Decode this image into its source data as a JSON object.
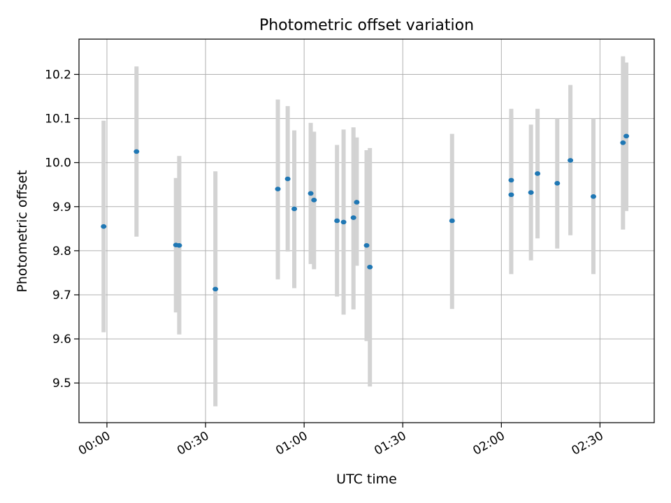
{
  "chart_data": {
    "type": "scatter",
    "title": "Photometric offset variation",
    "xlabel": "UTC time",
    "ylabel": "Photometric offset",
    "grid": true,
    "xlim": [
      "23:51:30",
      "02:46:30"
    ],
    "ylim": [
      9.41,
      10.28
    ],
    "x_ticks": [
      "00:00",
      "00:30",
      "01:00",
      "01:30",
      "02:00",
      "02:30"
    ],
    "y_ticks": [
      "9.5",
      "9.6",
      "9.7",
      "9.8",
      "9.9",
      "10.0",
      "10.1",
      "10.2"
    ],
    "colors": {
      "point": "#1f77b4",
      "errorbar": "#d3d3d3",
      "grid": "#b0b0b0"
    },
    "points": [
      {
        "x": "23:59",
        "y": 9.855,
        "ylow": 9.615,
        "yhigh": 10.095
      },
      {
        "x": "00:09",
        "y": 10.025,
        "ylow": 9.832,
        "yhigh": 10.218
      },
      {
        "x": "00:21",
        "y": 9.813,
        "ylow": 9.66,
        "yhigh": 9.965
      },
      {
        "x": "00:22",
        "y": 9.812,
        "ylow": 9.61,
        "yhigh": 10.015
      },
      {
        "x": "00:33",
        "y": 9.713,
        "ylow": 9.447,
        "yhigh": 9.98
      },
      {
        "x": "00:52",
        "y": 9.94,
        "ylow": 9.735,
        "yhigh": 10.143
      },
      {
        "x": "00:55",
        "y": 9.963,
        "ylow": 9.798,
        "yhigh": 10.128
      },
      {
        "x": "00:57",
        "y": 9.895,
        "ylow": 9.715,
        "yhigh": 10.073
      },
      {
        "x": "01:02",
        "y": 9.93,
        "ylow": 9.77,
        "yhigh": 10.09
      },
      {
        "x": "01:03",
        "y": 9.915,
        "ylow": 9.758,
        "yhigh": 10.07
      },
      {
        "x": "01:10",
        "y": 9.868,
        "ylow": 9.696,
        "yhigh": 10.04
      },
      {
        "x": "01:12",
        "y": 9.865,
        "ylow": 9.655,
        "yhigh": 10.075
      },
      {
        "x": "01:15",
        "y": 9.875,
        "ylow": 9.667,
        "yhigh": 10.08
      },
      {
        "x": "01:16",
        "y": 9.91,
        "ylow": 9.766,
        "yhigh": 10.057
      },
      {
        "x": "01:19",
        "y": 9.812,
        "ylow": 9.595,
        "yhigh": 10.028
      },
      {
        "x": "01:20",
        "y": 9.763,
        "ylow": 9.492,
        "yhigh": 10.033
      },
      {
        "x": "01:45",
        "y": 9.868,
        "ylow": 9.668,
        "yhigh": 10.065
      },
      {
        "x": "02:03",
        "y": 9.96,
        "ylow": 9.798,
        "yhigh": 10.122
      },
      {
        "x": "02:03",
        "y": 9.927,
        "ylow": 9.747,
        "yhigh": 10.107
      },
      {
        "x": "02:09",
        "y": 9.932,
        "ylow": 9.778,
        "yhigh": 10.086
      },
      {
        "x": "02:11",
        "y": 9.975,
        "ylow": 9.828,
        "yhigh": 10.122
      },
      {
        "x": "02:17",
        "y": 9.953,
        "ylow": 9.805,
        "yhigh": 10.1
      },
      {
        "x": "02:21",
        "y": 10.005,
        "ylow": 9.835,
        "yhigh": 10.176
      },
      {
        "x": "02:28",
        "y": 9.923,
        "ylow": 9.747,
        "yhigh": 10.1
      },
      {
        "x": "02:37",
        "y": 10.045,
        "ylow": 9.848,
        "yhigh": 10.241
      },
      {
        "x": "02:38",
        "y": 10.06,
        "ylow": 9.89,
        "yhigh": 10.227
      }
    ]
  }
}
